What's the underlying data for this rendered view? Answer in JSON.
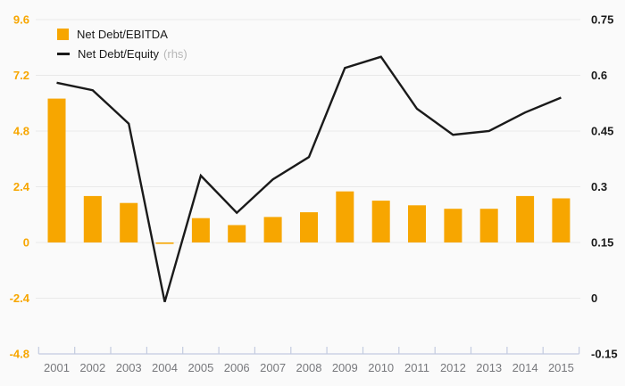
{
  "chart_data": {
    "type": "bar+line",
    "title": "",
    "categories": [
      "2001",
      "2002",
      "2003",
      "2004",
      "2005",
      "2006",
      "2007",
      "2008",
      "2009",
      "2010",
      "2011",
      "2012",
      "2013",
      "2014",
      "2015"
    ],
    "series": [
      {
        "name": "Net Debt/EBITDA",
        "type": "bar",
        "axis": "left",
        "values": [
          6.2,
          2.0,
          1.7,
          -0.05,
          1.05,
          0.75,
          1.1,
          1.3,
          2.2,
          1.8,
          1.6,
          1.45,
          1.45,
          2.0,
          1.9
        ]
      },
      {
        "name": "Net Debt/Equity",
        "axis_note": "(rhs)",
        "type": "line",
        "axis": "right",
        "values": [
          0.58,
          0.56,
          0.47,
          -0.01,
          0.33,
          0.23,
          0.32,
          0.38,
          0.62,
          0.65,
          0.51,
          0.44,
          0.45,
          0.5,
          0.54
        ]
      }
    ],
    "left_axis": {
      "tick_labels": [
        "9.6",
        "7.2",
        "4.8",
        "2.4",
        "0",
        "-2.4",
        "-4.8"
      ],
      "range": [
        -4.8,
        9.6
      ]
    },
    "right_axis": {
      "tick_labels": [
        "0.75",
        "0.6",
        "0.45",
        "0.3",
        "0.15",
        "0",
        "-0.15"
      ],
      "range": [
        -0.15,
        0.75
      ]
    },
    "legend_position": "top-left",
    "grid": "horizontal"
  },
  "colors": {
    "bar": "#F7A600",
    "line": "#1A1A1A",
    "left_axis_text": "#F7A600",
    "right_axis_text": "#1A1A1A",
    "x_axis_text": "#77787C",
    "gridline": "#E9E9E9",
    "axis_line": "#C3CBE0",
    "background": "#FAFAFA",
    "rhs_note": "#B7B7B7",
    "legend_text": "#1A1A1A"
  }
}
